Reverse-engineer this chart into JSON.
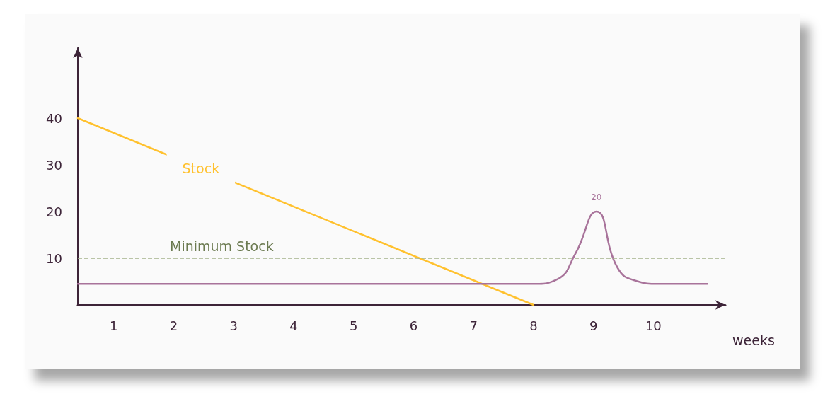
{
  "chart_data": {
    "type": "line",
    "xlabel": "weeks",
    "xlim": [
      0.4,
      11.2
    ],
    "xticks": [
      1,
      2,
      3,
      4,
      5,
      6,
      7,
      8,
      9,
      10
    ],
    "ylim": [
      0,
      55
    ],
    "yticks": [
      10,
      20,
      30,
      40
    ],
    "series": [
      {
        "name": "Stock",
        "color": "#ffc12e",
        "x": [
          0.4,
          8
        ],
        "values": [
          40,
          0
        ]
      },
      {
        "color": "#a8739a",
        "x": [
          0.4,
          8.0,
          8.4,
          8.7,
          9.05,
          9.4,
          9.7,
          10.1,
          10.9
        ],
        "values": [
          4.5,
          4.5,
          5.5,
          11,
          20,
          8,
          5.2,
          4.5,
          4.5
        ],
        "value_labels": [
          null,
          null,
          null,
          null,
          "20",
          null,
          null,
          null,
          null
        ]
      }
    ],
    "ref_lines": [
      {
        "axis": "y",
        "value": 10,
        "label": "Minimum Stock",
        "color": "#a4b38a",
        "line_style": "dashed"
      }
    ],
    "grid": false,
    "legend": false,
    "marker": "none"
  }
}
